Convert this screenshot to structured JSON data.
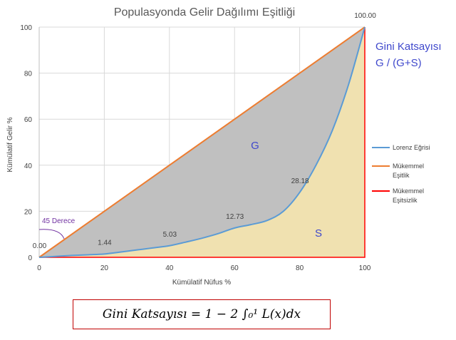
{
  "formula": "Gini Katsayısı = 1 − 2 ∫₀¹ L(x)dx",
  "chart_data": {
    "type": "area",
    "title": "Populasyonda Gelir Dağılımı Eşitliği",
    "xlabel": "Kümülatif Nüfus %",
    "ylabel": "Kümülatif Gelir %",
    "xlim": [
      0,
      100
    ],
    "ylim": [
      0,
      100
    ],
    "x_ticks": [
      "0",
      "20",
      "40",
      "60",
      "80",
      "100"
    ],
    "y_ticks": [
      "0",
      "20",
      "40",
      "60",
      "80",
      "100"
    ],
    "grid": true,
    "legend_position": "right",
    "series": [
      {
        "name": "Lorenz Eğrisi",
        "color": "#5b9bd5",
        "x": [
          0,
          5,
          10,
          15,
          20,
          25,
          30,
          35,
          40,
          45,
          50,
          55,
          60,
          65,
          70,
          75,
          80,
          85,
          90,
          95,
          100
        ],
        "y": [
          0,
          0.4,
          0.8,
          1.1,
          1.44,
          2.3,
          3.2,
          4.1,
          5.03,
          6.6,
          8.3,
          10.3,
          12.73,
          14.2,
          16.0,
          20.0,
          28.18,
          40.0,
          55.0,
          75.0,
          100.0
        ]
      },
      {
        "name": "Mükemmel Eşitlik",
        "color": "#ed7d31",
        "x": [
          0,
          100
        ],
        "y": [
          0,
          100
        ]
      },
      {
        "name": "Mükemmel Eşitsizlik",
        "color": "#ff0000",
        "x": [
          0,
          100,
          100
        ],
        "y": [
          0,
          0,
          100
        ]
      }
    ],
    "data_labels": [
      {
        "x": 0,
        "y": 0,
        "text": "0.00"
      },
      {
        "x": 20,
        "y": 1.44,
        "text": "1.44"
      },
      {
        "x": 40,
        "y": 5.03,
        "text": "5.03"
      },
      {
        "x": 60,
        "y": 12.73,
        "text": "12.73"
      },
      {
        "x": 80,
        "y": 28.18,
        "text": "28.18"
      },
      {
        "x": 100,
        "y": 100,
        "text": "100.00"
      }
    ],
    "area_labels": [
      {
        "text": "G",
        "color": "#c0c0c0"
      },
      {
        "text": "S",
        "color": "#f0e1b0"
      }
    ],
    "annotations": {
      "angle_label": "45 Derece",
      "gini_title": "Gini Katsayısı",
      "gini_ratio": "G / (G+S)"
    }
  }
}
